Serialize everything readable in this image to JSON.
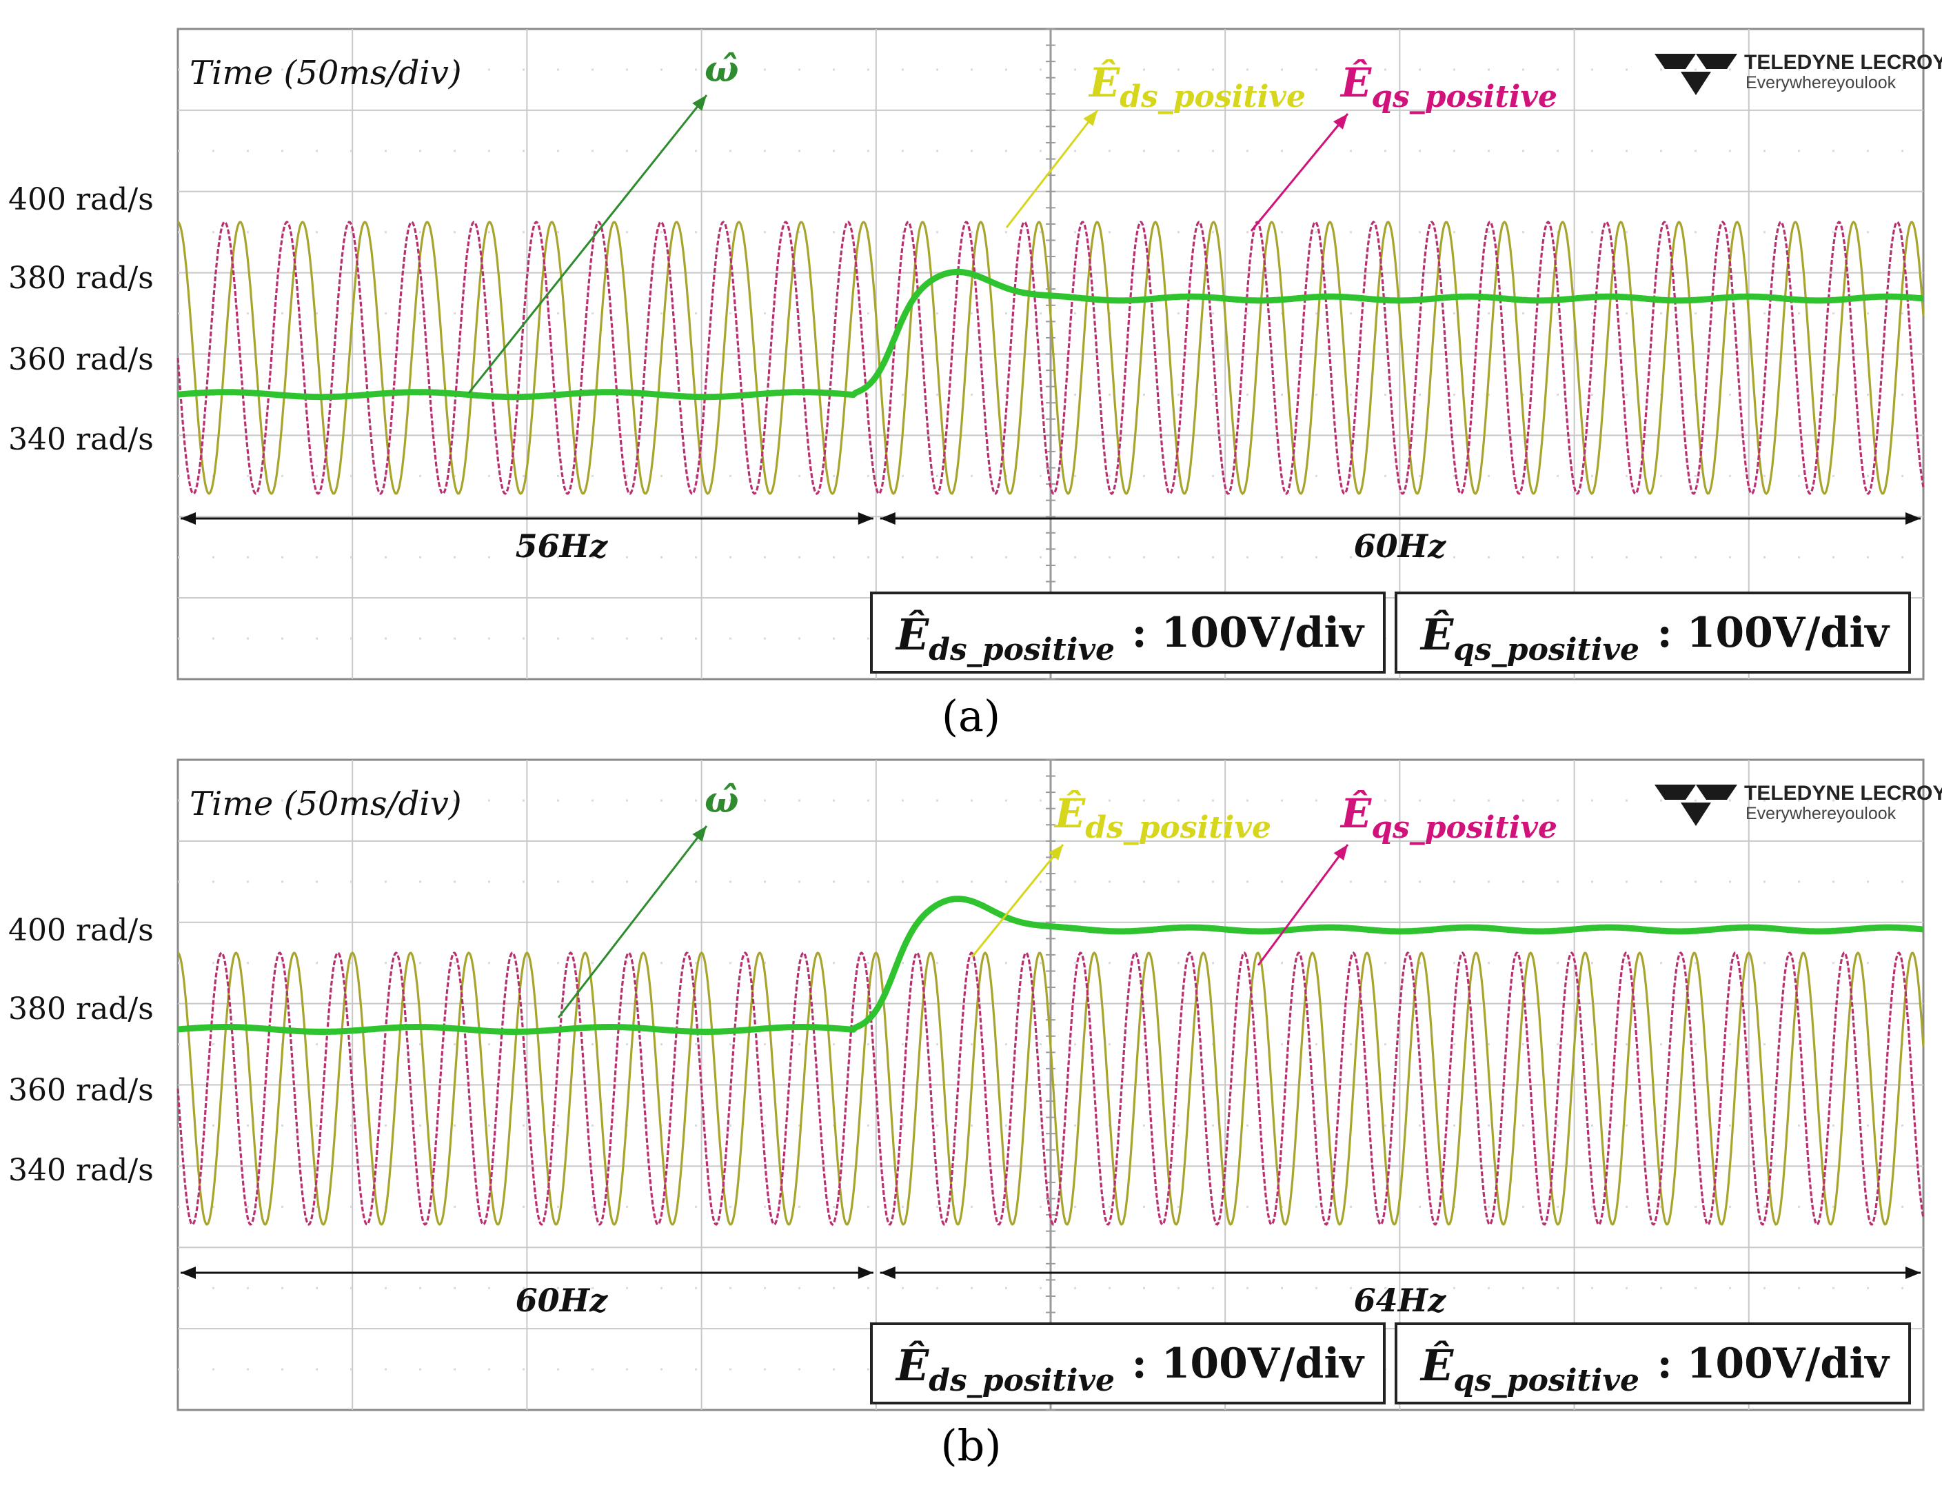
{
  "chart_data": [
    {
      "id": "a",
      "type": "line",
      "caption": "(a)",
      "time_label": "Time (50ms/div)",
      "y_tick_labels": [
        "400 rad/s",
        "380 rad/s",
        "360 rad/s",
        "340 rad/s"
      ],
      "y_tick_values": [
        400,
        380,
        360,
        340
      ],
      "omega_label": "ω̂",
      "eds_label": {
        "main": "Ê",
        "sub": "ds_positive"
      },
      "eqs_label": {
        "main": "Ê",
        "sub": "qs_positive"
      },
      "omega_initial": 351,
      "omega_peak": 382,
      "omega_final": 375,
      "step_time_ms": 200,
      "freq_before_label": "56Hz",
      "freq_after_label": "60Hz",
      "freq_before_hz": 56,
      "freq_after_hz": 60,
      "time_per_div_ms": 50,
      "divisions": 10,
      "scale_boxes": [
        {
          "main": "Ê",
          "sub": "ds_positive",
          "value": ": 100V/div"
        },
        {
          "main": "Ê",
          "sub": "qs_positive",
          "value": ": 100V/div"
        }
      ],
      "series": [
        {
          "name": "ω̂",
          "color": "#2fc42f"
        },
        {
          "name": "Ê ds_positive",
          "color": "#a7a52e"
        },
        {
          "name": "Ê qs_positive",
          "color": "#b8306f"
        }
      ],
      "logo": {
        "brand": "TELEDYNE LECROY",
        "tagline": "Everywhereyoulook"
      }
    },
    {
      "id": "b",
      "type": "line",
      "caption": "(b)",
      "time_label": "Time (50ms/div)",
      "y_tick_labels": [
        "400 rad/s",
        "380 rad/s",
        "360 rad/s",
        "340 rad/s"
      ],
      "y_tick_values": [
        400,
        380,
        360,
        340
      ],
      "omega_label": "ω̂",
      "eds_label": {
        "main": "Ê",
        "sub": "ds_positive"
      },
      "eqs_label": {
        "main": "Ê",
        "sub": "qs_positive"
      },
      "omega_initial": 375,
      "omega_peak": 408,
      "omega_final": 400,
      "step_time_ms": 200,
      "freq_before_label": "60Hz",
      "freq_after_label": "64Hz",
      "freq_before_hz": 60,
      "freq_after_hz": 64,
      "time_per_div_ms": 50,
      "divisions": 10,
      "scale_boxes": [
        {
          "main": "Ê",
          "sub": "ds_positive",
          "value": ": 100V/div"
        },
        {
          "main": "Ê",
          "sub": "qs_positive",
          "value": ": 100V/div"
        }
      ],
      "series": [
        {
          "name": "ω̂",
          "color": "#2fc42f"
        },
        {
          "name": "Ê ds_positive",
          "color": "#a7a52e"
        },
        {
          "name": "Ê qs_positive",
          "color": "#b8306f"
        }
      ],
      "logo": {
        "brand": "TELEDYNE LECROY",
        "tagline": "Everywhereyoulook"
      }
    }
  ],
  "colors": {
    "omega": "#2fc42f",
    "eds": "#a7a52e",
    "eqs": "#b8306f",
    "eds_label": "#d6d61c",
    "eqs_label": "#d1127a",
    "omega_label": "#2e8b2e",
    "grid": "#c8c8c8"
  }
}
